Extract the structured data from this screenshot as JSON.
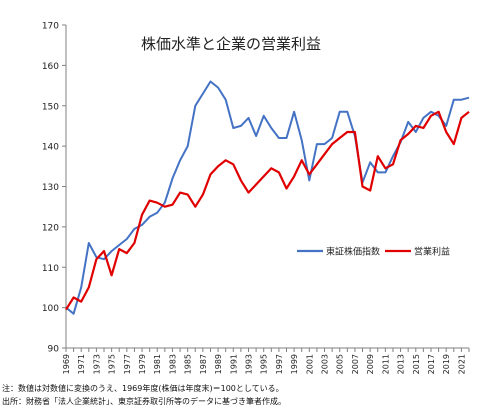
{
  "chart_data": {
    "type": "line",
    "title": "株価水準と企業の営業利益",
    "xlabel": "",
    "ylabel": "",
    "ylim": [
      90,
      170
    ],
    "yticks": [
      90,
      100,
      110,
      120,
      130,
      140,
      150,
      160,
      170
    ],
    "xlim": [
      1969,
      2022
    ],
    "xtick_labels": [
      "1969",
      "1971",
      "1973",
      "1975",
      "1977",
      "1979",
      "1981",
      "1983",
      "1985",
      "1987",
      "1989",
      "1991",
      "1993",
      "1995",
      "1997",
      "1999",
      "2001",
      "2003",
      "2005",
      "2007",
      "2009",
      "2011",
      "2013",
      "2015",
      "2017",
      "2019",
      "2021"
    ],
    "grid": false,
    "legend_position": "right-center",
    "x": [
      1969,
      1970,
      1971,
      1972,
      1973,
      1974,
      1975,
      1976,
      1977,
      1978,
      1979,
      1980,
      1981,
      1982,
      1983,
      1984,
      1985,
      1986,
      1987,
      1988,
      1989,
      1990,
      1991,
      1992,
      1993,
      1994,
      1995,
      1996,
      1997,
      1998,
      1999,
      2000,
      2001,
      2002,
      2003,
      2004,
      2005,
      2006,
      2007,
      2008,
      2009,
      2010,
      2011,
      2012,
      2013,
      2014,
      2015,
      2016,
      2017,
      2018,
      2019,
      2020,
      2021,
      2022
    ],
    "series": [
      {
        "name": "東証株価指数",
        "color": "#4472c4",
        "values": [
          100,
          98.5,
          105,
          116,
          112.5,
          112,
          114,
          115.5,
          117,
          119.5,
          120.5,
          122.5,
          123.5,
          126,
          132,
          136.5,
          140,
          150,
          153,
          156,
          154.5,
          151.5,
          144.5,
          145,
          147,
          142.5,
          147.5,
          144.5,
          142,
          142,
          148.5,
          141.5,
          131.5,
          140.5,
          140.5,
          142,
          148.5,
          148.5,
          142.5,
          131,
          136,
          133.5,
          133.5,
          137.5,
          141,
          146,
          143.5,
          147,
          148.5,
          147.5,
          145,
          151.5,
          151.5,
          152
        ]
      },
      {
        "name": "営業利益",
        "color": "#e00000",
        "values": [
          99.5,
          102.5,
          101.5,
          105,
          112,
          114,
          108,
          114.5,
          113.5,
          116,
          123,
          126.5,
          126,
          125,
          125.5,
          128.5,
          128,
          125,
          128,
          133,
          135,
          136.5,
          135.5,
          131.5,
          128.5,
          130.5,
          132.5,
          134.5,
          133.5,
          129.5,
          132.5,
          136.5,
          133,
          135.5,
          138,
          140.5,
          142,
          143.5,
          143.5,
          130,
          129,
          137.5,
          134.5,
          135.5,
          141.5,
          143,
          145,
          144.5,
          147.5,
          148.5,
          143.5,
          140.5,
          147,
          148.5
        ]
      }
    ]
  },
  "notes": {
    "line1": "注：数値は対数値に変換のうえ、1969年度(株価は年度末)＝100としている。",
    "line2": "出所：財務省「法人企業統計」、東京証券取引所等のデータに基づき筆者作成。"
  }
}
